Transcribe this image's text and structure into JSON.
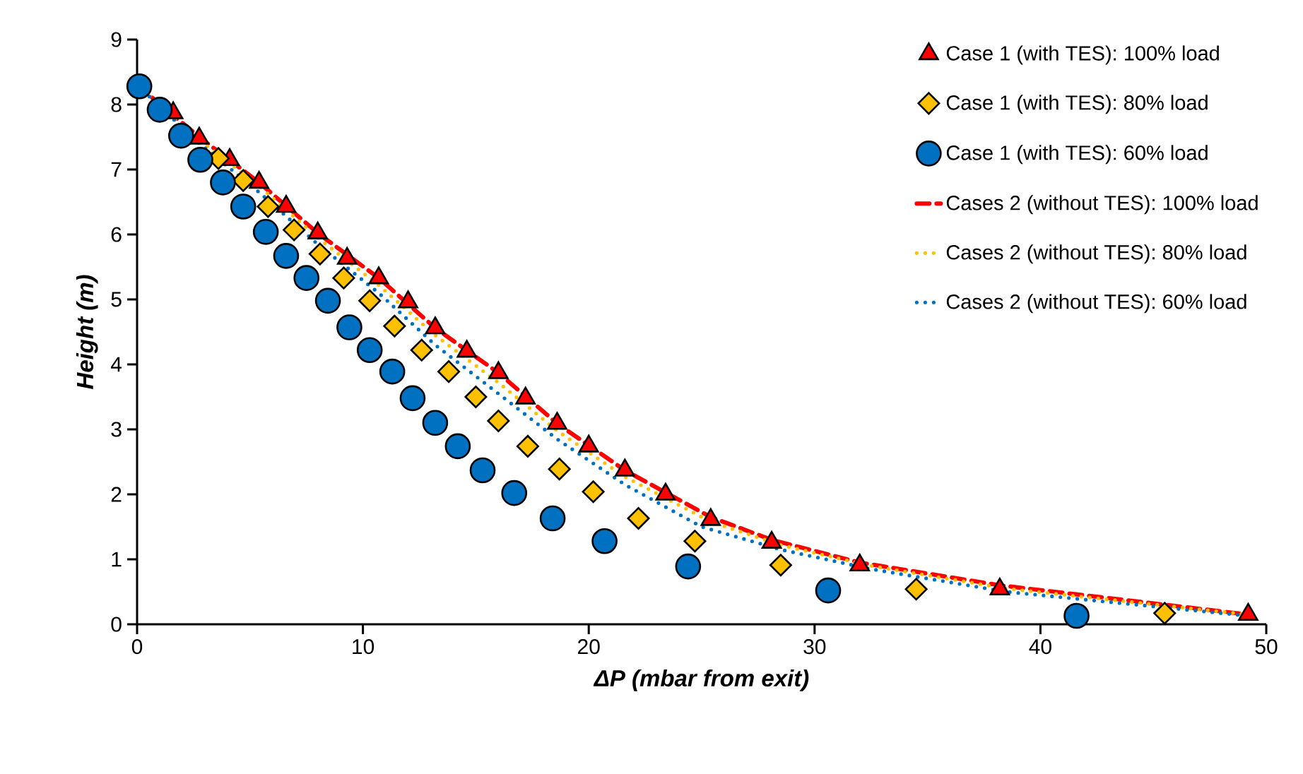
{
  "chart_data": {
    "type": "scatter",
    "xlabel": "ΔP (mbar from exit)",
    "ylabel": "Height (m)",
    "xlim": [
      0,
      50
    ],
    "ylim": [
      0,
      9
    ],
    "xticks": [
      0,
      10,
      20,
      30,
      40,
      50
    ],
    "yticks": [
      0,
      1,
      2,
      3,
      4,
      5,
      6,
      7,
      8,
      9
    ],
    "grid": false,
    "legend": "top right",
    "series": [
      {
        "name": "Case 1 (with TES): 100% load",
        "marker": "triangle",
        "color": "#ff0000",
        "x": [
          1.6,
          2.75,
          4.1,
          5.4,
          6.6,
          8.0,
          9.3,
          10.7,
          12.0,
          13.2,
          14.6,
          16.0,
          17.2,
          18.6,
          20.0,
          21.6,
          23.4,
          25.4,
          28.1,
          32.0,
          38.2,
          49.2
        ],
        "values": [
          7.87,
          7.48,
          7.15,
          6.8,
          6.43,
          6.02,
          5.63,
          5.33,
          4.96,
          4.56,
          4.2,
          3.87,
          3.48,
          3.09,
          2.74,
          2.37,
          2.0,
          1.61,
          1.26,
          0.91,
          0.54,
          0.15
        ]
      },
      {
        "name": "Case 1 (with TES): 80% load",
        "marker": "diamond",
        "color": "#ffc000",
        "x": [
          3.6,
          4.7,
          5.8,
          6.95,
          8.1,
          9.15,
          10.3,
          11.4,
          12.6,
          13.8,
          15.0,
          16.0,
          17.3,
          18.7,
          20.2,
          22.2,
          24.7,
          28.5,
          34.5,
          45.5
        ],
        "values": [
          7.17,
          6.83,
          6.43,
          6.07,
          5.7,
          5.33,
          4.98,
          4.59,
          4.22,
          3.89,
          3.5,
          3.13,
          2.74,
          2.39,
          2.04,
          1.63,
          1.28,
          0.91,
          0.54,
          0.17
        ]
      },
      {
        "name": "Case 1 (with TES): 60% load",
        "marker": "circle",
        "color": "#0070c0",
        "x": [
          0.1,
          1.0,
          1.95,
          2.8,
          3.8,
          4.7,
          5.7,
          6.6,
          7.5,
          8.45,
          9.4,
          10.3,
          11.3,
          12.2,
          13.2,
          14.2,
          15.3,
          16.7,
          18.4,
          20.7,
          24.4,
          30.6,
          41.6
        ],
        "values": [
          8.28,
          7.92,
          7.52,
          7.15,
          6.8,
          6.43,
          6.04,
          5.67,
          5.33,
          4.98,
          4.57,
          4.22,
          3.89,
          3.48,
          3.1,
          2.74,
          2.37,
          2.02,
          1.63,
          1.28,
          0.89,
          0.52,
          0.13
        ]
      },
      {
        "name": "Cases 2 (without TES): 100% load",
        "type": "line",
        "line_style": "dashed",
        "color": "#ff0000",
        "x": [
          0,
          2.75,
          5.4,
          8.0,
          10.7,
          13.2,
          16.0,
          18.6,
          21.6,
          25.4,
          28.1,
          32.0,
          38.2,
          49.2
        ],
        "values": [
          8.3,
          7.5,
          6.8,
          6.02,
          5.33,
          4.56,
          3.87,
          3.09,
          2.37,
          1.65,
          1.3,
          0.95,
          0.6,
          0.15
        ]
      },
      {
        "name": "Cases 2 (without TES): 80% load",
        "type": "line",
        "line_style": "dotted",
        "color": "#ffc000",
        "x": [
          0,
          2.7,
          5.4,
          8.0,
          10.7,
          13.2,
          16.0,
          18.6,
          21.6,
          25.4,
          28.5,
          32.5,
          38.5,
          49.2
        ],
        "values": [
          8.3,
          7.47,
          6.75,
          5.95,
          5.22,
          4.45,
          3.72,
          2.98,
          2.27,
          1.58,
          1.22,
          0.9,
          0.55,
          0.15
        ]
      },
      {
        "name": "Cases 2 (without TES): 60% load",
        "type": "line",
        "line_style": "dotted",
        "color": "#0070c0",
        "x": [
          0,
          2.7,
          5.4,
          8.0,
          10.7,
          13.2,
          16.0,
          18.6,
          21.6,
          25.0,
          28.5,
          32.5,
          38.5,
          49.2
        ],
        "values": [
          8.3,
          7.42,
          6.65,
          5.85,
          5.1,
          4.3,
          3.55,
          2.85,
          2.15,
          1.5,
          1.15,
          0.85,
          0.5,
          0.13
        ]
      }
    ]
  }
}
